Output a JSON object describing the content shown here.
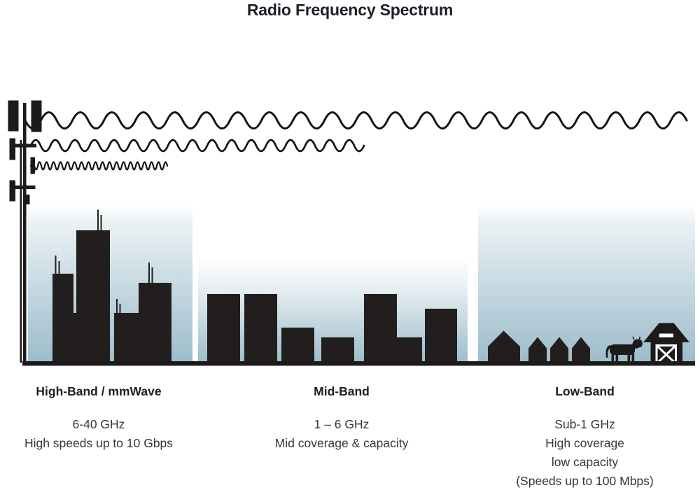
{
  "title": "Radio Frequency Spectrum",
  "bands": [
    {
      "name": "High-Band / mmWave",
      "lines": [
        "6-40 GHz",
        "High speeds up to 10 Gbps"
      ]
    },
    {
      "name": "Mid-Band",
      "lines": [
        "1 – 6 GHz",
        "Mid coverage & capacity"
      ]
    },
    {
      "name": "Low-Band",
      "lines": [
        "Sub-1 GHz",
        "High coverage",
        "low capacity",
        "(Speeds up to 100 Mbps)"
      ]
    }
  ],
  "illustration": {
    "tower_icon": "cell-tower-icon",
    "waves": [
      {
        "icon": "long-wavelength-wave-icon",
        "band": "Low-Band"
      },
      {
        "icon": "medium-wavelength-wave-icon",
        "band": "Mid-Band"
      },
      {
        "icon": "short-wavelength-wave-icon",
        "band": "High-Band / mmWave"
      }
    ],
    "scenes": [
      {
        "icon": "city-skyline-icon",
        "band": "High-Band / mmWave"
      },
      {
        "icon": "mid-rise-buildings-icon",
        "band": "Mid-Band"
      },
      {
        "icon": "houses-cow-barn-icon",
        "band": "Low-Band"
      }
    ]
  },
  "colors": {
    "ink": "#221e1e",
    "sky_gradient_bottom": "#9cbccb",
    "title_text": "#1b2129",
    "body_text": "#3a3633"
  }
}
